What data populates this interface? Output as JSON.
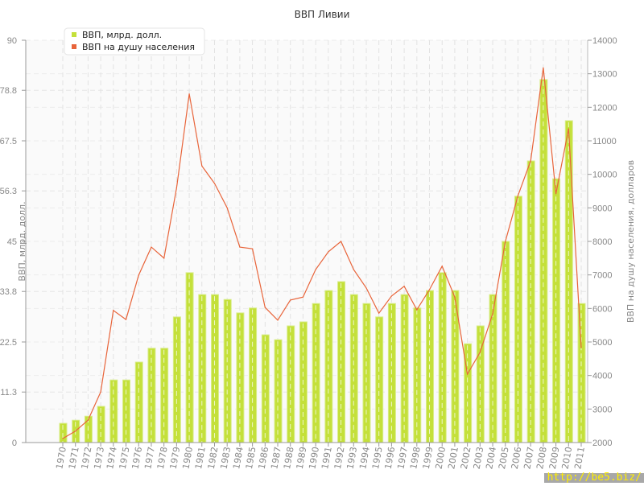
{
  "chart_data": {
    "type": "bar+line",
    "title": "ВВП Ливии",
    "ylabel_left": "ВВП, млрд. долл.",
    "ylabel_right": "ВВП на душу населения, долларов",
    "ylim_left": [
      0,
      90
    ],
    "ylim_right": [
      2000,
      14000
    ],
    "yticks_left": [
      "0",
      "11.3",
      "22.5",
      "33.8",
      "45",
      "56.3",
      "67.5",
      "78.8",
      "90"
    ],
    "yticks_right": [
      "2000",
      "3000",
      "4000",
      "5000",
      "6000",
      "7000",
      "8000",
      "9000",
      "10000",
      "11000",
      "12000",
      "13000",
      "14000"
    ],
    "grid": true,
    "legend_position": "top-left",
    "categories": [
      "1970",
      "1971",
      "1972",
      "1973",
      "1974",
      "1975",
      "1976",
      "1977",
      "1978",
      "1979",
      "1980",
      "1981",
      "1982",
      "1983",
      "1984",
      "1985",
      "1986",
      "1987",
      "1988",
      "1989",
      "1990",
      "1991",
      "1992",
      "1993",
      "1994",
      "1995",
      "1996",
      "1997",
      "1998",
      "1999",
      "2000",
      "2001",
      "2002",
      "2003",
      "2004",
      "2005",
      "2006",
      "2007",
      "2008",
      "2009",
      "2010",
      "2011"
    ],
    "series": [
      {
        "name": "ВВП, млрд. долл.",
        "type": "bar",
        "axis": "left",
        "color": "#c4e03a",
        "values": [
          4.3,
          5.0,
          5.9,
          8.1,
          14,
          14,
          18,
          21.1,
          21.1,
          28.1,
          38,
          33.1,
          33.1,
          32,
          29,
          30.1,
          24.1,
          23,
          26.1,
          27,
          31.1,
          34,
          36,
          33.1,
          31.1,
          28.1,
          31.1,
          33.1,
          30.1,
          34,
          38,
          34,
          22.1,
          26.1,
          33.1,
          45,
          55.1,
          63,
          81.2,
          59,
          72,
          31.1
        ]
      },
      {
        "name": "ВВП на душу населения",
        "type": "line",
        "axis": "right",
        "color": "#e8643a",
        "values": [
          2120,
          2340,
          2670,
          3510,
          5940,
          5670,
          6990,
          7830,
          7500,
          9600,
          12400,
          10250,
          9730,
          9000,
          7830,
          7780,
          6030,
          5650,
          6250,
          6340,
          7160,
          7690,
          8000,
          7160,
          6610,
          5860,
          6370,
          6660,
          5960,
          6560,
          7260,
          6340,
          4040,
          4690,
          5840,
          8000,
          9370,
          10400,
          13180,
          9420,
          11360,
          4830
        ]
      }
    ]
  },
  "watermark": "http://be5.biz/"
}
